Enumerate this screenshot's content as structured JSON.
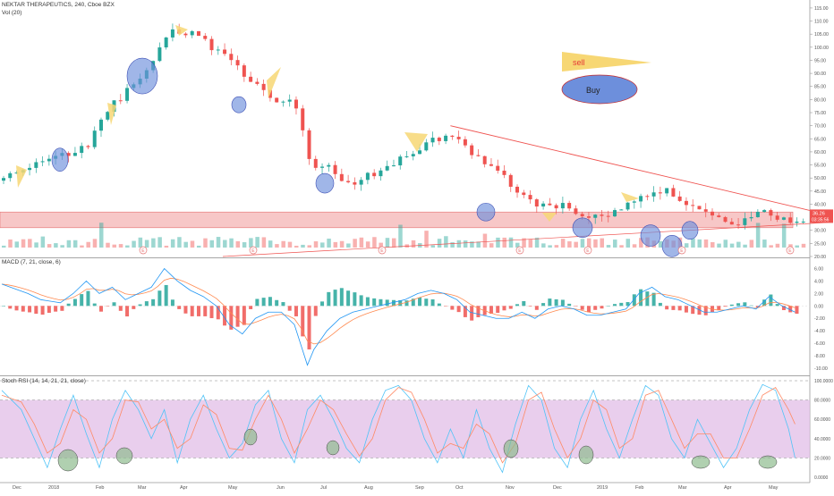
{
  "header": {
    "symbol_line": "NEKTAR THERAPEUTICS, 240, Cboe BZX",
    "volume_label": "Vol (20)",
    "macd_label": "MACD (7, 21, close, 6)",
    "stoch_label": "Stoch RSI (14, 14, 21, 21, close)"
  },
  "colors": {
    "up": "#26a69a",
    "down": "#ef5350",
    "macd_line": "#2196f3",
    "signal_line": "#ff8a50",
    "stoch_k": "#4fc3f7",
    "stoch_d": "#ff8a65",
    "band_fill": "#f4b4b4",
    "rsi_band": "#e1bee7",
    "buy_marker": "#6d8fdc",
    "sell_marker": "#f7d774",
    "rsi_marker": "#8fbc8f",
    "trendline": "#ef5350"
  },
  "annotations": {
    "sell_label": "sell",
    "buy_label": "Buy",
    "earnings_letter": "E",
    "last_price": "36.26",
    "countdown": "03:35:56"
  },
  "chart_data": [
    {
      "type": "candlestick",
      "title": "NEKTAR THERAPEUTICS, 240, Cboe BZX",
      "x_tick_labels": [
        "Dec",
        "2018",
        "Feb",
        "Mar",
        "Apr",
        "May",
        "Jun",
        "Jul",
        "Aug",
        "Sep",
        "Oct",
        "Nov",
        "Dec",
        "2019",
        "Feb",
        "Mar",
        "Apr",
        "May"
      ],
      "y_tick_labels": [
        "115.00",
        "110.00",
        "105.00",
        "100.00",
        "95.00",
        "90.00",
        "85.00",
        "80.00",
        "75.00",
        "70.00",
        "65.00",
        "60.00",
        "55.00",
        "50.00",
        "45.00",
        "40.00",
        "35.00",
        "30.00",
        "25.00",
        "20.00"
      ],
      "ylim": [
        20,
        116
      ],
      "close_path": [
        [
          0,
          49
        ],
        [
          3,
          52
        ],
        [
          6,
          56
        ],
        [
          9,
          58
        ],
        [
          12,
          61
        ],
        [
          14,
          63
        ],
        [
          15,
          72
        ],
        [
          17,
          78
        ],
        [
          19,
          82
        ],
        [
          21,
          86
        ],
        [
          23,
          92
        ],
        [
          24,
          99
        ],
        [
          26,
          106
        ],
        [
          28,
          104
        ],
        [
          29,
          107
        ],
        [
          31,
          104
        ],
        [
          33,
          99
        ],
        [
          36,
          93
        ],
        [
          38,
          88
        ],
        [
          40,
          85
        ],
        [
          42,
          80
        ],
        [
          43,
          78
        ],
        [
          44,
          81
        ],
        [
          46,
          74
        ],
        [
          47,
          60
        ],
        [
          48,
          52
        ],
        [
          50,
          56
        ],
        [
          52,
          49
        ],
        [
          54,
          47
        ],
        [
          56,
          50
        ],
        [
          58,
          52
        ],
        [
          60,
          55
        ],
        [
          62,
          58
        ],
        [
          64,
          61
        ],
        [
          66,
          64
        ],
        [
          68,
          66
        ],
        [
          69,
          68
        ],
        [
          71,
          63
        ],
        [
          73,
          59
        ],
        [
          75,
          55
        ],
        [
          77,
          51
        ],
        [
          79,
          47
        ],
        [
          80,
          44
        ],
        [
          82,
          40
        ],
        [
          84,
          39
        ],
        [
          86,
          40
        ],
        [
          88,
          38
        ],
        [
          90,
          36
        ],
        [
          92,
          34
        ],
        [
          94,
          36
        ],
        [
          96,
          39
        ],
        [
          98,
          42
        ],
        [
          100,
          44
        ],
        [
          102,
          46
        ],
        [
          104,
          43
        ],
        [
          106,
          40
        ],
        [
          108,
          38
        ],
        [
          110,
          35
        ],
        [
          112,
          32
        ],
        [
          114,
          33
        ],
        [
          116,
          36
        ],
        [
          118,
          37
        ],
        [
          120,
          35
        ],
        [
          122,
          34
        ]
      ],
      "support_band": [
        31,
        37
      ],
      "trendline": [
        [
          69,
          70
        ],
        [
          127,
          36
        ]
      ],
      "volume_label": "Vol (20)"
    },
    {
      "type": "line",
      "title": "MACD (7, 21, close, 6)",
      "y_tick_labels": [
        "6.00",
        "4.00",
        "2.00",
        "0.00",
        "-2.00",
        "-4.00",
        "-6.00",
        "-8.00",
        "-10.00"
      ],
      "ylim": [
        -11,
        7.5
      ],
      "series": [
        {
          "name": "MACD",
          "values": [
            [
              0,
              3.5
            ],
            [
              4,
              2
            ],
            [
              6,
              1
            ],
            [
              9,
              0.5
            ],
            [
              11,
              2
            ],
            [
              13,
              4
            ],
            [
              15,
              2
            ],
            [
              17,
              3
            ],
            [
              19,
              1
            ],
            [
              21,
              2
            ],
            [
              23,
              3
            ],
            [
              25,
              6
            ],
            [
              27,
              4
            ],
            [
              29,
              2.5
            ],
            [
              31,
              1.5
            ],
            [
              33,
              0
            ],
            [
              35,
              -3
            ],
            [
              37,
              -4.5
            ],
            [
              39,
              -2
            ],
            [
              41,
              -1
            ],
            [
              43,
              -1
            ],
            [
              45,
              -3
            ],
            [
              47,
              -9.5
            ],
            [
              48,
              -7
            ],
            [
              50,
              -4
            ],
            [
              52,
              -2
            ],
            [
              54,
              -1
            ],
            [
              56,
              -0.5
            ],
            [
              58,
              0
            ],
            [
              60,
              0.5
            ],
            [
              62,
              1
            ],
            [
              64,
              2
            ],
            [
              66,
              2.5
            ],
            [
              68,
              2
            ],
            [
              70,
              1
            ],
            [
              72,
              -1
            ],
            [
              74,
              -1.5
            ],
            [
              76,
              -2
            ],
            [
              78,
              -2
            ],
            [
              80,
              -1
            ],
            [
              82,
              -2
            ],
            [
              84,
              -0.5
            ],
            [
              86,
              0
            ],
            [
              88,
              -0.5
            ],
            [
              90,
              -1.5
            ],
            [
              92,
              -1.5
            ],
            [
              94,
              -1
            ],
            [
              96,
              -0.5
            ],
            [
              98,
              2
            ],
            [
              100,
              3
            ],
            [
              102,
              1.5
            ],
            [
              104,
              1
            ],
            [
              106,
              0
            ],
            [
              108,
              -1
            ],
            [
              110,
              -1
            ],
            [
              112,
              -0.5
            ],
            [
              114,
              0
            ],
            [
              116,
              -0.5
            ],
            [
              118,
              1.5
            ],
            [
              120,
              0
            ],
            [
              122,
              -1
            ]
          ]
        }
      ]
    },
    {
      "type": "line",
      "title": "Stoch RSI (14, 14, 21, 21, close)",
      "y_tick_labels": [
        "100.0000",
        "80.0000",
        "60.0000",
        "40.0000",
        "20.0000",
        "0.0000"
      ],
      "ylim": [
        0,
        100
      ],
      "overbought": 80,
      "oversold": 20,
      "series": [
        {
          "name": "K",
          "values": [
            [
              0,
              90
            ],
            [
              3,
              70
            ],
            [
              5,
              40
            ],
            [
              7,
              10
            ],
            [
              9,
              50
            ],
            [
              11,
              85
            ],
            [
              13,
              45
            ],
            [
              15,
              10
            ],
            [
              17,
              60
            ],
            [
              19,
              90
            ],
            [
              21,
              70
            ],
            [
              23,
              40
            ],
            [
              25,
              70
            ],
            [
              27,
              15
            ],
            [
              29,
              60
            ],
            [
              31,
              85
            ],
            [
              33,
              50
            ],
            [
              35,
              20
            ],
            [
              37,
              35
            ],
            [
              39,
              75
            ],
            [
              41,
              90
            ],
            [
              43,
              40
            ],
            [
              45,
              15
            ],
            [
              47,
              70
            ],
            [
              49,
              85
            ],
            [
              51,
              60
            ],
            [
              53,
              30
            ],
            [
              55,
              15
            ],
            [
              57,
              60
            ],
            [
              59,
              90
            ],
            [
              61,
              95
            ],
            [
              63,
              80
            ],
            [
              65,
              40
            ],
            [
              67,
              15
            ],
            [
              69,
              50
            ],
            [
              71,
              20
            ],
            [
              73,
              70
            ],
            [
              75,
              30
            ],
            [
              77,
              5
            ],
            [
              79,
              55
            ],
            [
              81,
              95
            ],
            [
              83,
              80
            ],
            [
              85,
              30
            ],
            [
              87,
              10
            ],
            [
              89,
              60
            ],
            [
              91,
              90
            ],
            [
              93,
              50
            ],
            [
              95,
              20
            ],
            [
              97,
              60
            ],
            [
              99,
              95
            ],
            [
              101,
              85
            ],
            [
              103,
              40
            ],
            [
              105,
              20
            ],
            [
              107,
              60
            ],
            [
              109,
              35
            ],
            [
              111,
              10
            ],
            [
              113,
              30
            ],
            [
              115,
              70
            ],
            [
              117,
              96
            ],
            [
              119,
              90
            ],
            [
              121,
              50
            ],
            [
              122,
              20
            ]
          ]
        },
        {
          "name": "D",
          "values": [
            [
              0,
              85
            ],
            [
              3,
              78
            ],
            [
              5,
              55
            ],
            [
              7,
              25
            ],
            [
              9,
              35
            ],
            [
              11,
              70
            ],
            [
              13,
              60
            ],
            [
              15,
              25
            ],
            [
              17,
              40
            ],
            [
              19,
              80
            ],
            [
              21,
              78
            ],
            [
              23,
              50
            ],
            [
              25,
              60
            ],
            [
              27,
              30
            ],
            [
              29,
              40
            ],
            [
              31,
              75
            ],
            [
              33,
              65
            ],
            [
              35,
              30
            ],
            [
              37,
              28
            ],
            [
              39,
              60
            ],
            [
              41,
              85
            ],
            [
              43,
              60
            ],
            [
              45,
              25
            ],
            [
              47,
              50
            ],
            [
              49,
              80
            ],
            [
              51,
              70
            ],
            [
              53,
              45
            ],
            [
              55,
              22
            ],
            [
              57,
              40
            ],
            [
              59,
              80
            ],
            [
              61,
              93
            ],
            [
              63,
              88
            ],
            [
              65,
              60
            ],
            [
              67,
              25
            ],
            [
              69,
              35
            ],
            [
              71,
              30
            ],
            [
              73,
              55
            ],
            [
              75,
              45
            ],
            [
              77,
              15
            ],
            [
              79,
              35
            ],
            [
              81,
              80
            ],
            [
              83,
              88
            ],
            [
              85,
              50
            ],
            [
              87,
              20
            ],
            [
              89,
              40
            ],
            [
              91,
              80
            ],
            [
              93,
              70
            ],
            [
              95,
              30
            ],
            [
              97,
              40
            ],
            [
              99,
              85
            ],
            [
              101,
              90
            ],
            [
              103,
              60
            ],
            [
              105,
              30
            ],
            [
              107,
              45
            ],
            [
              109,
              45
            ],
            [
              111,
              20
            ],
            [
              113,
              20
            ],
            [
              115,
              50
            ],
            [
              117,
              85
            ],
            [
              119,
              93
            ],
            [
              121,
              70
            ],
            [
              122,
              55
            ]
          ]
        }
      ]
    }
  ]
}
